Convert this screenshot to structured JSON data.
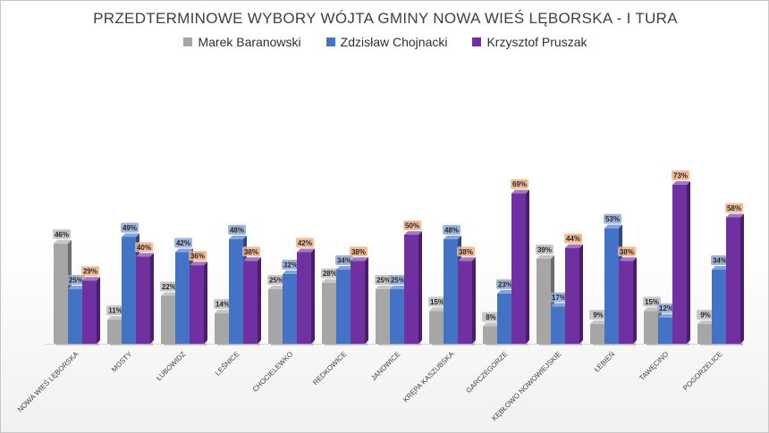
{
  "chart_data": {
    "type": "bar",
    "title": "PRZEDTERMINOWE WYBORY WÓJTA GMINY NOWA WIEŚ LĘBORSKA - I TURA",
    "xlabel": "",
    "ylabel": "",
    "ylim": [
      0,
      80
    ],
    "grid": false,
    "legend_position": "top",
    "categories": [
      "NOWA WIEŚ LĘBORSKA",
      "MOSTY",
      "ŁUBOWIDZ",
      "LEŚNICE",
      "CHOCIELEWKO",
      "REDKOWICE",
      "JANOWICE",
      "KRĘPA KASZUBSKA",
      "GARCZEGORZE",
      "KĘBŁOWO NOWOWIEJSKIE",
      "ŁEBIEŃ",
      "TAWĘCINO",
      "POGORZELICE"
    ],
    "series": [
      {
        "name": "Marek Baranowski",
        "color": "#a6a6a6",
        "label_color": "#bfbfbf",
        "values": [
          46,
          11,
          22,
          14,
          25,
          28,
          25,
          15,
          8,
          39,
          9,
          15,
          9
        ]
      },
      {
        "name": "Zdzisław Chojnacki",
        "color": "#4472c4",
        "label_color": "#8ea9db",
        "values": [
          25,
          49,
          42,
          48,
          32,
          34,
          25,
          48,
          23,
          17,
          53,
          12,
          34
        ]
      },
      {
        "name": "Krzysztof Pruszak",
        "color": "#7030a0",
        "label_color": "#f4b183",
        "values": [
          29,
          40,
          36,
          38,
          42,
          38,
          50,
          38,
          69,
          44,
          38,
          73,
          58
        ]
      }
    ]
  }
}
